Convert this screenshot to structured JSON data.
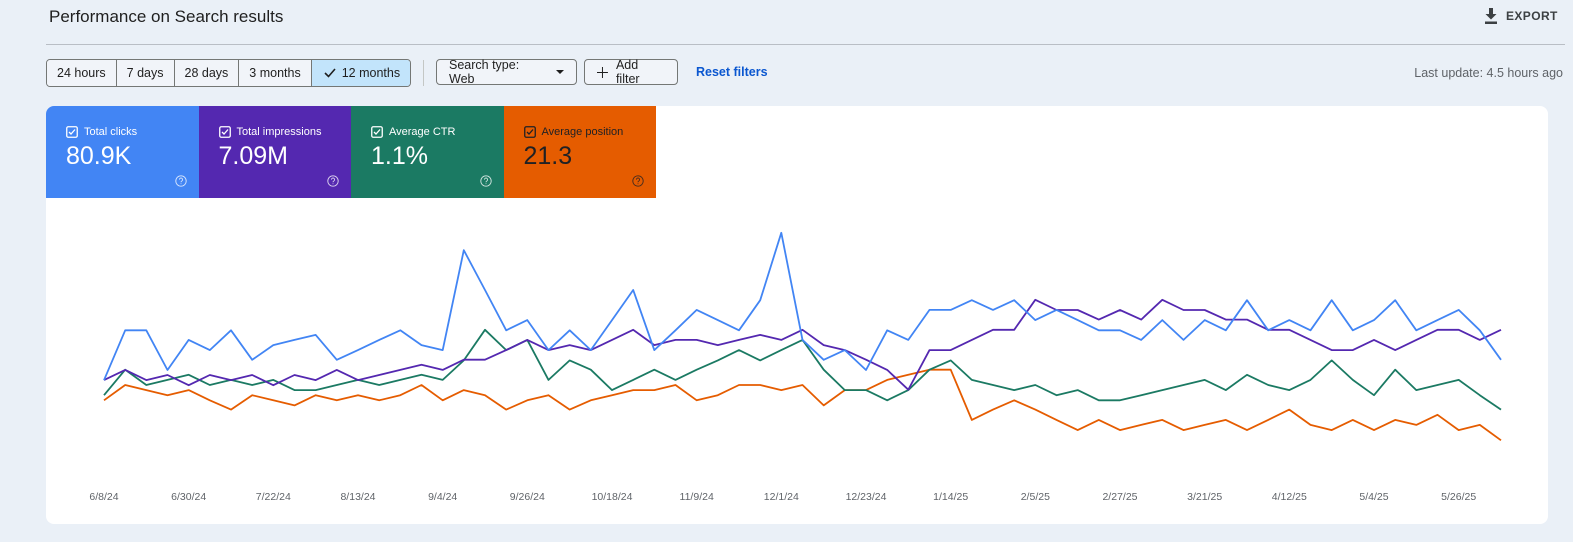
{
  "header": {
    "title": "Performance on Search results",
    "export": "EXPORT"
  },
  "toolbar": {
    "ranges": [
      "24 hours",
      "7 days",
      "28 days",
      "3 months",
      "12 months"
    ],
    "selected_range": 4,
    "search_type": "Search type: Web",
    "add_filter": "Add filter",
    "reset": "Reset filters",
    "last_update": "Last update: 4.5 hours ago"
  },
  "chart_data": {
    "type": "line",
    "categories": [
      "6/8/24",
      null,
      null,
      null,
      "6/30/24",
      null,
      null,
      null,
      "7/22/24",
      null,
      null,
      null,
      "8/13/24",
      null,
      null,
      null,
      "9/4/24",
      null,
      null,
      null,
      "9/26/24",
      null,
      null,
      null,
      "10/18/24",
      null,
      null,
      null,
      "11/9/24",
      null,
      null,
      null,
      "12/1/24",
      null,
      null,
      null,
      "12/23/24",
      null,
      null,
      null,
      "1/14/25",
      null,
      null,
      null,
      "2/5/25",
      null,
      null,
      null,
      "2/27/25",
      null,
      null,
      null,
      "3/21/25",
      null,
      null,
      null,
      "4/12/25",
      null,
      null,
      null,
      "5/4/25",
      null,
      null,
      null,
      "5/26/25",
      null,
      null
    ],
    "series": [
      {
        "name": "Total clicks",
        "total": "80.9K",
        "color": "#4285f4",
        "text_color": "#ffffff",
        "ylim": [
          0,
          500
        ],
        "values": [
          176,
          274,
          274,
          196,
          255,
          235,
          274,
          216,
          245,
          255,
          265,
          216,
          235,
          255,
          274,
          245,
          235,
          431,
          353,
          274,
          294,
          235,
          274,
          235,
          294,
          353,
          235,
          274,
          314,
          294,
          274,
          333,
          465,
          255,
          216,
          235,
          196,
          274,
          255,
          314,
          314,
          333,
          314,
          333,
          294,
          314,
          294,
          274,
          274,
          255,
          294,
          255,
          294,
          274,
          333,
          274,
          294,
          274,
          333,
          274,
          294,
          333,
          274,
          294,
          314,
          274,
          216
        ]
      },
      {
        "name": "Total impressions",
        "total": "7.09M",
        "color": "#5428b0",
        "text_color": "#ffffff",
        "ylim": [
          0,
          40000
        ],
        "values": [
          14100,
          15700,
          14100,
          14900,
          13300,
          14900,
          14100,
          14900,
          13300,
          14900,
          14100,
          15700,
          14100,
          14900,
          15700,
          16500,
          15700,
          17300,
          17300,
          18800,
          20400,
          18800,
          19600,
          18800,
          20400,
          22000,
          19600,
          20400,
          20400,
          19600,
          20400,
          21200,
          20400,
          22000,
          19600,
          18800,
          17300,
          15700,
          12600,
          18800,
          18800,
          20400,
          22000,
          22000,
          26700,
          25100,
          25100,
          23600,
          25100,
          23600,
          26700,
          25100,
          25100,
          23600,
          23600,
          22000,
          22000,
          20400,
          18800,
          18800,
          20400,
          18800,
          20400,
          22000,
          22000,
          20400,
          22000
        ]
      },
      {
        "name": "Average CTR",
        "total": "1.1%",
        "color": "#1b7a63",
        "text_color": "#ffffff",
        "ylim": [
          0,
          3
        ],
        "values": [
          0.88,
          1.18,
          1.0,
          1.06,
          1.12,
          1.0,
          1.06,
          1.0,
          1.06,
          0.94,
          0.94,
          1.0,
          1.06,
          1.0,
          1.06,
          1.12,
          1.06,
          1.29,
          1.65,
          1.41,
          1.53,
          1.06,
          1.29,
          1.18,
          0.94,
          1.06,
          1.18,
          1.06,
          1.18,
          1.29,
          1.41,
          1.29,
          1.41,
          1.53,
          1.18,
          0.94,
          0.94,
          0.82,
          0.94,
          1.18,
          1.29,
          1.06,
          1.0,
          0.94,
          1.0,
          0.88,
          0.94,
          0.82,
          0.82,
          0.88,
          0.94,
          1.0,
          1.06,
          0.94,
          1.12,
          1.0,
          0.94,
          1.06,
          1.29,
          1.06,
          0.88,
          1.18,
          0.94,
          1.0,
          1.06,
          0.88,
          0.71
        ]
      },
      {
        "name": "Average position",
        "total": "21.3",
        "color": "#e55c00",
        "text_color": "#202124",
        "ylim": [
          30,
          0
        ],
        "values": [
          21.8,
          20.0,
          20.6,
          21.2,
          20.6,
          21.8,
          22.9,
          21.2,
          21.8,
          22.4,
          21.2,
          21.8,
          21.2,
          21.8,
          21.2,
          20.0,
          21.8,
          20.6,
          21.2,
          22.9,
          21.8,
          21.2,
          22.9,
          21.8,
          21.2,
          20.6,
          20.6,
          20.0,
          21.8,
          21.2,
          20.0,
          20.0,
          20.6,
          20.0,
          22.4,
          20.6,
          20.6,
          19.4,
          18.8,
          18.2,
          18.2,
          24.1,
          22.9,
          21.8,
          22.9,
          24.1,
          25.3,
          24.1,
          25.3,
          24.7,
          24.1,
          25.3,
          24.7,
          24.1,
          25.3,
          24.1,
          22.9,
          24.7,
          25.3,
          24.1,
          25.3,
          24.1,
          24.7,
          23.5,
          25.3,
          24.7,
          26.5
        ]
      }
    ]
  }
}
